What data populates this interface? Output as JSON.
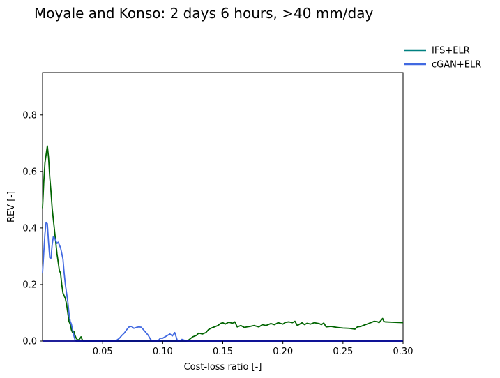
{
  "chart_data": {
    "type": "line",
    "title": "Moyale and Konso: 2 days 6 hours, >40 mm/day",
    "xlabel": "Cost-loss ratio [-]",
    "ylabel": "REV [-]",
    "xlim": [
      0.0,
      0.3
    ],
    "ylim": [
      0.0,
      0.95
    ],
    "xticks": [
      0.05,
      0.1,
      0.15,
      0.2,
      0.25,
      0.3
    ],
    "xtick_labels": [
      "0.05",
      "0.10",
      "0.15",
      "0.20",
      "0.25",
      "0.30"
    ],
    "yticks": [
      0.0,
      0.2,
      0.4,
      0.6,
      0.8
    ],
    "ytick_labels": [
      "0.0",
      "0.2",
      "0.4",
      "0.6",
      "0.8"
    ],
    "grid": false,
    "legend_position": "top-right outside",
    "series": [
      {
        "name": "IFS+ELR",
        "legend_color": "#008080",
        "color": "#006400",
        "x": [
          0.0,
          0.001,
          0.002,
          0.003,
          0.004,
          0.005,
          0.006,
          0.007,
          0.008,
          0.009,
          0.01,
          0.012,
          0.014,
          0.015,
          0.016,
          0.017,
          0.018,
          0.019,
          0.02,
          0.021,
          0.022,
          0.023,
          0.024,
          0.025,
          0.026,
          0.027,
          0.028,
          0.029,
          0.03,
          0.031,
          0.032,
          0.033,
          0.034,
          0.035,
          0.037,
          0.04,
          0.05,
          0.06,
          0.07,
          0.08,
          0.09,
          0.1,
          0.11,
          0.115,
          0.117,
          0.12,
          0.122,
          0.125,
          0.128,
          0.13,
          0.133,
          0.136,
          0.138,
          0.14,
          0.143,
          0.146,
          0.148,
          0.15,
          0.152,
          0.155,
          0.158,
          0.16,
          0.162,
          0.165,
          0.168,
          0.17,
          0.173,
          0.176,
          0.18,
          0.183,
          0.186,
          0.19,
          0.193,
          0.196,
          0.2,
          0.202,
          0.205,
          0.208,
          0.21,
          0.212,
          0.214,
          0.216,
          0.218,
          0.22,
          0.223,
          0.226,
          0.23,
          0.232,
          0.234,
          0.236,
          0.24,
          0.245,
          0.25,
          0.255,
          0.26,
          0.262,
          0.265,
          0.268,
          0.27,
          0.273,
          0.276,
          0.279,
          0.28,
          0.282,
          0.283,
          0.284,
          0.285,
          0.29,
          0.295,
          0.3
        ],
        "y": [
          0.47,
          0.56,
          0.63,
          0.66,
          0.69,
          0.65,
          0.58,
          0.53,
          0.47,
          0.43,
          0.39,
          0.31,
          0.25,
          0.24,
          0.2,
          0.17,
          0.16,
          0.15,
          0.13,
          0.1,
          0.07,
          0.06,
          0.04,
          0.03,
          0.035,
          0.02,
          0.01,
          0.005,
          0.004,
          0.008,
          0.015,
          0.005,
          0.0,
          0.0,
          0.0,
          0.0,
          0.0,
          0.0,
          0.0,
          0.0,
          0.0,
          0.0,
          0.0,
          0.0,
          0.0,
          0.0,
          0.005,
          0.015,
          0.02,
          0.028,
          0.025,
          0.03,
          0.04,
          0.045,
          0.05,
          0.055,
          0.062,
          0.065,
          0.06,
          0.067,
          0.063,
          0.068,
          0.05,
          0.055,
          0.048,
          0.05,
          0.052,
          0.055,
          0.05,
          0.058,
          0.055,
          0.062,
          0.058,
          0.065,
          0.06,
          0.066,
          0.068,
          0.065,
          0.07,
          0.055,
          0.06,
          0.065,
          0.058,
          0.063,
          0.06,
          0.065,
          0.062,
          0.058,
          0.064,
          0.05,
          0.052,
          0.048,
          0.046,
          0.045,
          0.042,
          0.05,
          0.052,
          0.057,
          0.06,
          0.065,
          0.07,
          0.068,
          0.065,
          0.075,
          0.08,
          0.07,
          0.068,
          0.067,
          0.066,
          0.065
        ]
      },
      {
        "name": "cGAN+ELR",
        "color": "#4169E1",
        "x": [
          0.0,
          0.001,
          0.002,
          0.003,
          0.004,
          0.005,
          0.006,
          0.007,
          0.008,
          0.009,
          0.01,
          0.011,
          0.012,
          0.013,
          0.014,
          0.015,
          0.016,
          0.017,
          0.018,
          0.019,
          0.02,
          0.021,
          0.022,
          0.023,
          0.024,
          0.025,
          0.026,
          0.027,
          0.028,
          0.03,
          0.04,
          0.05,
          0.06,
          0.062,
          0.064,
          0.066,
          0.068,
          0.07,
          0.072,
          0.074,
          0.076,
          0.078,
          0.08,
          0.082,
          0.084,
          0.086,
          0.088,
          0.09,
          0.092,
          0.094,
          0.096,
          0.098,
          0.1,
          0.102,
          0.104,
          0.106,
          0.108,
          0.11,
          0.112,
          0.114,
          0.116,
          0.12,
          0.15,
          0.2,
          0.25,
          0.3
        ],
        "y": [
          0.24,
          0.31,
          0.38,
          0.42,
          0.415,
          0.35,
          0.295,
          0.293,
          0.34,
          0.37,
          0.365,
          0.355,
          0.345,
          0.35,
          0.34,
          0.33,
          0.31,
          0.29,
          0.24,
          0.2,
          0.17,
          0.14,
          0.1,
          0.07,
          0.06,
          0.04,
          0.02,
          0.005,
          0.0,
          0.0,
          0.0,
          0.0,
          0.0,
          0.004,
          0.01,
          0.02,
          0.028,
          0.04,
          0.05,
          0.052,
          0.045,
          0.048,
          0.05,
          0.049,
          0.04,
          0.03,
          0.02,
          0.005,
          0.0,
          0.0,
          0.0,
          0.01,
          0.01,
          0.015,
          0.02,
          0.025,
          0.018,
          0.03,
          0.004,
          0.0,
          0.006,
          0.0,
          0.0,
          0.0,
          0.0,
          0.0
        ]
      }
    ],
    "baseline_color": "#00008B"
  }
}
